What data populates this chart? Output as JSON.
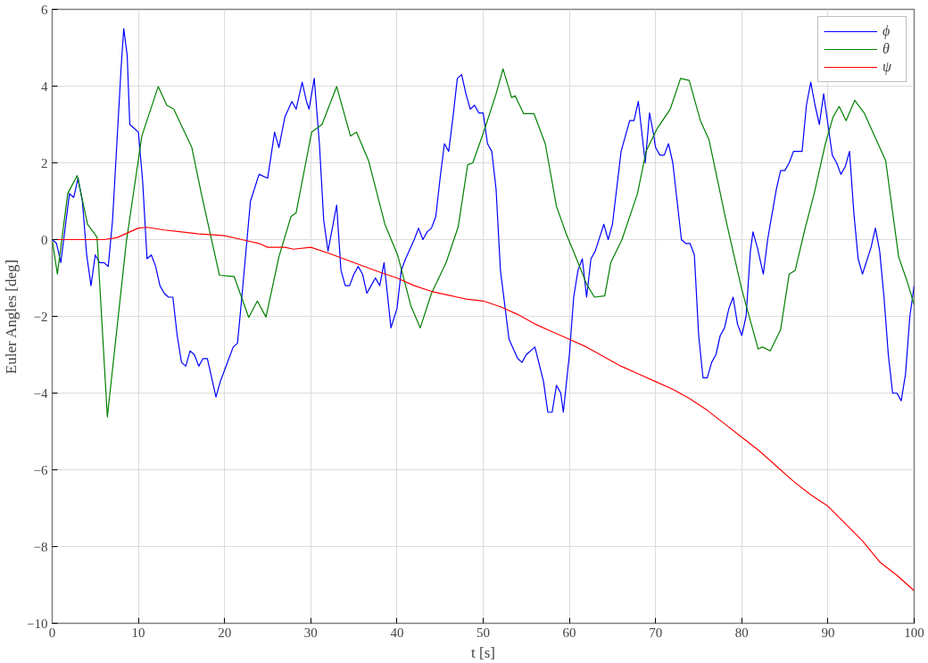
{
  "chart_data": {
    "type": "line",
    "xlabel": "t [s]",
    "ylabel": "Euler Angles [deg]",
    "xlim": [
      0,
      100
    ],
    "ylim": [
      -10,
      6
    ],
    "xticks": [
      0,
      10,
      20,
      30,
      40,
      50,
      60,
      70,
      80,
      90,
      100
    ],
    "yticks": [
      -10,
      -8,
      -6,
      -4,
      -2,
      0,
      2,
      4,
      6
    ],
    "grid": true,
    "legend": "top right",
    "marker": "none",
    "line_style": "solid",
    "series": [
      {
        "name": "ϕ",
        "color": "#0000ff",
        "x": [
          0,
          0.5,
          1,
          1.5,
          2,
          2.5,
          3,
          3.5,
          4,
          4.5,
          5,
          5.5,
          6,
          6.5,
          7,
          7.5,
          8,
          8.3,
          8.7,
          9,
          9.5,
          10,
          10.5,
          11,
          11.5,
          12,
          12.5,
          13,
          13.5,
          14,
          14.5,
          15,
          15.5,
          16,
          16.5,
          17,
          17.5,
          18,
          18.5,
          19,
          19.5,
          20,
          21,
          21.5,
          22,
          23,
          24,
          25,
          25.8,
          26.3,
          27,
          27.8,
          28.3,
          29,
          29.5,
          29.8,
          30.4,
          31,
          31.5,
          32,
          32.5,
          33,
          33.5,
          34,
          34.5,
          35,
          35.5,
          36,
          36.5,
          37,
          37.5,
          38,
          38.5,
          39.3,
          40,
          40.5,
          41,
          42,
          42.5,
          43,
          43.5,
          44,
          44.5,
          45,
          45.5,
          46,
          46.5,
          47,
          47.5,
          48,
          48.5,
          49,
          49.5,
          50,
          50.5,
          51,
          51.5,
          52,
          53,
          54,
          54.5,
          55,
          56,
          57,
          57.5,
          58,
          58.5,
          59,
          59.3,
          60,
          60.5,
          61,
          61.5,
          62,
          62.5,
          63,
          64,
          64.5,
          65,
          66,
          67,
          67.5,
          68,
          68.8,
          69.3,
          69.8,
          70,
          70.5,
          71,
          71.5,
          72,
          72.5,
          73,
          73.5,
          74,
          74.5,
          75,
          75.5,
          76,
          76.5,
          77,
          77.5,
          78,
          78.5,
          79,
          79.5,
          80,
          80.5,
          81,
          81.3,
          81.8,
          82.5,
          83,
          84,
          84.5,
          85,
          85.5,
          86,
          86.5,
          87,
          87.5,
          88,
          88.5,
          89,
          89.5,
          90,
          90.5,
          91,
          91.5,
          92,
          92.5,
          93,
          93.5,
          94,
          95,
          95.5,
          96,
          96.5,
          97,
          97.5,
          98,
          98.5,
          99,
          99.5,
          100
        ],
        "values": [
          0,
          -0.1,
          -0.6,
          0.3,
          1.2,
          1.1,
          1.6,
          1.0,
          -0.4,
          -1.2,
          -0.4,
          -0.6,
          -0.6,
          -0.7,
          0.5,
          2.5,
          4.5,
          5.5,
          4.8,
          3.0,
          2.9,
          2.8,
          1.5,
          -0.5,
          -0.4,
          -0.7,
          -1.2,
          -1.4,
          -1.5,
          -1.5,
          -2.5,
          -3.2,
          -3.3,
          -2.9,
          -3.0,
          -3.3,
          -3.1,
          -3.1,
          -3.6,
          -4.1,
          -3.7,
          -3.4,
          -2.8,
          -2.7,
          -1.5,
          1.0,
          1.7,
          1.6,
          2.8,
          2.4,
          3.2,
          3.6,
          3.4,
          4.1,
          3.6,
          3.4,
          4.2,
          2.5,
          0.5,
          -0.3,
          0.3,
          0.9,
          -0.8,
          -1.2,
          -1.2,
          -0.9,
          -0.7,
          -0.9,
          -1.4,
          -1.2,
          -1.0,
          -1.2,
          -0.6,
          -2.3,
          -1.8,
          -0.8,
          -0.5,
          0.0,
          0.3,
          0.0,
          0.2,
          0.3,
          0.6,
          1.6,
          2.5,
          2.3,
          3.2,
          4.2,
          4.3,
          3.8,
          3.4,
          3.5,
          3.3,
          3.3,
          2.5,
          2.3,
          1.3,
          -0.8,
          -2.6,
          -3.1,
          -3.2,
          -3.0,
          -2.8,
          -3.7,
          -4.5,
          -4.5,
          -3.8,
          -4.0,
          -4.5,
          -3.0,
          -1.5,
          -0.8,
          -0.5,
          -1.5,
          -0.5,
          -0.3,
          0.4,
          0.0,
          0.4,
          2.3,
          3.1,
          3.1,
          3.6,
          2.0,
          3.3,
          2.7,
          2.4,
          2.2,
          2.2,
          2.5,
          2.0,
          1.0,
          0.0,
          -0.1,
          -0.1,
          -0.4,
          -2.5,
          -3.6,
          -3.6,
          -3.2,
          -3.0,
          -2.5,
          -2.3,
          -1.8,
          -1.5,
          -2.2,
          -2.5,
          -2.0,
          -0.3,
          0.2,
          -0.2,
          -0.9,
          0.0,
          1.3,
          1.8,
          1.8,
          2.0,
          2.3,
          2.3,
          2.3,
          3.5,
          4.1,
          3.5,
          3.0,
          3.8,
          3.0,
          2.2,
          2.0,
          1.7,
          1.9,
          2.3,
          0.7,
          -0.5,
          -0.9,
          -0.2,
          0.3,
          -0.3,
          -1.5,
          -3.0,
          -4.0,
          -4.0,
          -4.2,
          -3.5,
          -2.0,
          -1.2
        ]
      },
      {
        "name": "θ",
        "color": "#008000",
        "x": [
          0,
          0.6,
          1.8,
          2.9,
          4.1,
          5.2,
          6.4,
          8.6,
          10.4,
          12.3,
          13.3,
          14.1,
          16.2,
          17.3,
          19.4,
          21.1,
          22.8,
          23.8,
          24.8,
          26.3,
          27.7,
          28.3,
          30.1,
          31.3,
          33.0,
          34.6,
          35.3,
          36.7,
          38.6,
          40.1,
          41.6,
          42.7,
          44.0,
          45.7,
          47.1,
          48.2,
          48.8,
          50.2,
          51.5,
          52.3,
          53.3,
          53.7,
          54.7,
          55.9,
          57.2,
          58.5,
          59.6,
          60.9,
          62.0,
          62.9,
          64.1,
          64.8,
          66.1,
          67.9,
          68.9,
          70.2,
          71.7,
          72.9,
          73.9,
          75.2,
          76.2,
          78.1,
          80.0,
          81.9,
          82.4,
          83.3,
          84.5,
          85.5,
          86.2,
          87.3,
          88.4,
          89.7,
          90.6,
          91.3,
          92.1,
          93.1,
          94.2,
          96.7,
          98.2,
          99.2,
          100
        ],
        "values": [
          0,
          -0.9,
          1.2,
          1.67,
          0.4,
          0.06,
          -4.62,
          -0.06,
          2.7,
          3.99,
          3.5,
          3.4,
          2.4,
          1.2,
          -0.93,
          -0.96,
          -2.03,
          -1.6,
          -2.02,
          -0.45,
          0.6,
          0.7,
          2.8,
          3.0,
          3.99,
          2.7,
          2.8,
          2.06,
          0.4,
          -0.42,
          -1.72,
          -2.3,
          -1.4,
          -0.6,
          0.33,
          1.95,
          2.0,
          2.9,
          3.8,
          4.45,
          3.7,
          3.75,
          3.28,
          3.28,
          2.5,
          0.87,
          0.17,
          -0.54,
          -1.16,
          -1.5,
          -1.47,
          -0.6,
          0,
          1.2,
          2.3,
          2.9,
          3.4,
          4.2,
          4.15,
          3.1,
          2.6,
          0.57,
          -1.3,
          -2.85,
          -2.8,
          -2.9,
          -2.35,
          -0.9,
          -0.8,
          0.25,
          1.2,
          2.5,
          3.2,
          3.47,
          3.1,
          3.63,
          3.3,
          2.05,
          -0.45,
          -1.1,
          -1.7
        ]
      },
      {
        "name": "ψ",
        "color": "#ff0000",
        "x": [
          0,
          6,
          7.5,
          9,
          10,
          11,
          13,
          15,
          17,
          19,
          20,
          22,
          24,
          25,
          27,
          28,
          30,
          32,
          35,
          38,
          40,
          42,
          44,
          46,
          48,
          50,
          52,
          54,
          56,
          58,
          60,
          62,
          64,
          66,
          68,
          70,
          72,
          74,
          76,
          78,
          80,
          82,
          84,
          86,
          88,
          90,
          92,
          94,
          96,
          98,
          100
        ],
        "values": [
          0,
          0,
          0.05,
          0.2,
          0.3,
          0.32,
          0.25,
          0.2,
          0.15,
          0.12,
          0.1,
          0,
          -0.1,
          -0.2,
          -0.2,
          -0.25,
          -0.2,
          -0.35,
          -0.6,
          -0.85,
          -1.0,
          -1.2,
          -1.35,
          -1.45,
          -1.55,
          -1.6,
          -1.75,
          -1.95,
          -2.2,
          -2.4,
          -2.6,
          -2.8,
          -3.05,
          -3.3,
          -3.5,
          -3.7,
          -3.9,
          -4.15,
          -4.45,
          -4.8,
          -5.15,
          -5.5,
          -5.9,
          -6.3,
          -6.65,
          -6.95,
          -7.4,
          -7.85,
          -8.4,
          -8.75,
          -9.15
        ]
      }
    ]
  }
}
